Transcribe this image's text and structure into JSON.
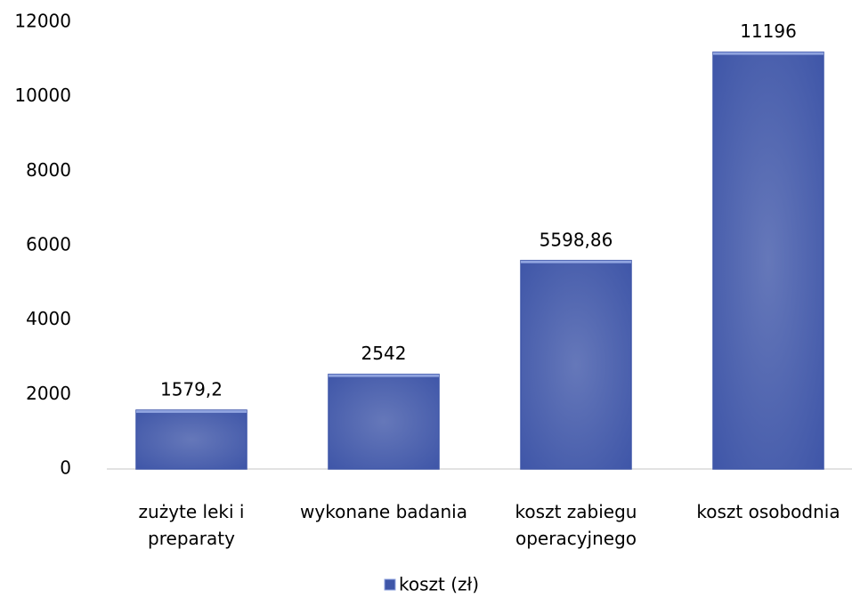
{
  "chart_data": {
    "type": "bar",
    "categories": [
      "zużyte leki i preparaty",
      "wykonane badania",
      "koszt zabiegu operacyjnego",
      "koszt osobodnia"
    ],
    "series": [
      {
        "name": "koszt (zł)",
        "color": "#3f56a8",
        "values": [
          1579.2,
          2542,
          5598.86,
          11196
        ],
        "value_labels": [
          "1579,2",
          "2542",
          "5598,86",
          "11196"
        ]
      }
    ],
    "ylim": [
      0,
      12000
    ],
    "yticks": [
      0,
      2000,
      4000,
      6000,
      8000,
      10000,
      12000
    ],
    "grid": false,
    "legend": "bottom"
  }
}
